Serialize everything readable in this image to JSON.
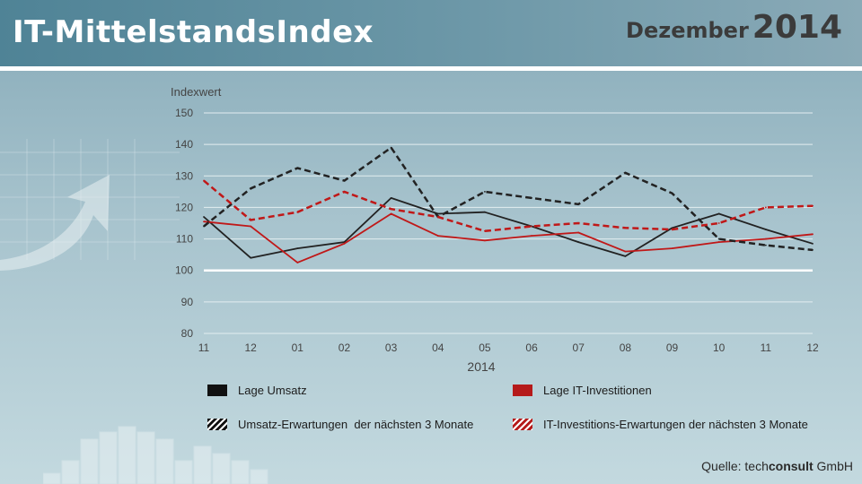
{
  "header": {
    "title": "IT-MittelstandsIndex",
    "month": "Dezember",
    "year": "2014"
  },
  "chart_data": {
    "type": "line",
    "ylabel": "Indexwert",
    "xlabel": "2014",
    "categories": [
      "11",
      "12",
      "01",
      "02",
      "03",
      "04",
      "05",
      "06",
      "07",
      "08",
      "09",
      "10",
      "11",
      "12"
    ],
    "ylim": [
      80,
      150
    ],
    "yticks": [
      80,
      90,
      100,
      110,
      120,
      130,
      140,
      150
    ],
    "reference_line": 100,
    "grid": true,
    "series": [
      {
        "name": "Lage Umsatz",
        "color": "#222222",
        "style": "solid",
        "values": [
          117,
          104,
          107,
          109,
          123,
          118,
          118.5,
          114,
          109,
          104.5,
          113.5,
          118,
          113,
          108.5
        ]
      },
      {
        "name": "Lage IT-Investitionen",
        "color": "#c01818",
        "style": "solid",
        "values": [
          115.5,
          114,
          102.5,
          108.5,
          118,
          111,
          109.5,
          111,
          112,
          106,
          107,
          109,
          110,
          111.5
        ]
      },
      {
        "name": "Umsatz-Erwartungen  der nächsten 3 Monate",
        "color": "#222222",
        "style": "dashed",
        "values": [
          114,
          126,
          132.5,
          128.5,
          139,
          117,
          125,
          123,
          121,
          131,
          124.5,
          110,
          108,
          106.5
        ]
      },
      {
        "name": "IT-Investitions-Erwartungen der nächsten 3 Monate",
        "color": "#c01818",
        "style": "dashed",
        "values": [
          128.5,
          116,
          118.5,
          125,
          119.5,
          117,
          112.5,
          114,
          115,
          113.5,
          113,
          115,
          120,
          120.5
        ]
      }
    ]
  },
  "legend": [
    {
      "label": "Lage Umsatz",
      "swatch": "solid-black"
    },
    {
      "label": "Lage IT-Investitionen",
      "swatch": "solid-red"
    },
    {
      "label": "Umsatz-Erwartungen  der nächsten 3 Monate",
      "swatch": "hatched-black"
    },
    {
      "label": "IT-Investitions-Erwartungen der nächsten 3 Monate",
      "swatch": "hatched-red"
    }
  ],
  "source": {
    "prefix": "Quelle:",
    "brand_light": "tech",
    "brand_bold": "consult",
    "suffix": "GmbH"
  }
}
